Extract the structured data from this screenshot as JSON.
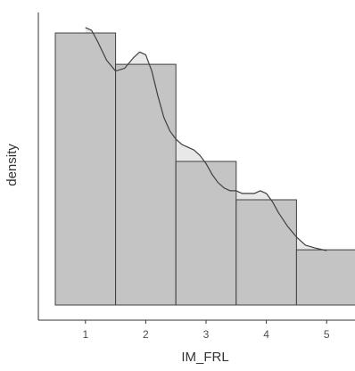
{
  "chart_data": {
    "type": "bar",
    "subtype": "histogram-with-density",
    "xlabel": "IM_FRL",
    "ylabel": "density",
    "x_ticks": [
      "1",
      "2",
      "3",
      "4",
      "5"
    ],
    "y_ticks": [],
    "xlim": [
      0.5,
      5.5
    ],
    "ylim": [
      0,
      1
    ],
    "grid": false,
    "legend": "none",
    "bins": [
      {
        "x": 1,
        "density": 1.0
      },
      {
        "x": 2,
        "density": 0.885
      },
      {
        "x": 3,
        "density": 0.528
      },
      {
        "x": 4,
        "density": 0.387
      },
      {
        "x": 5,
        "density": 0.203
      }
    ],
    "density_curve": {
      "x": [
        1.0,
        1.1,
        1.2,
        1.35,
        1.5,
        1.65,
        1.8,
        1.9,
        2.0,
        2.1,
        2.2,
        2.3,
        2.4,
        2.5,
        2.6,
        2.7,
        2.8,
        2.9,
        3.0,
        3.1,
        3.2,
        3.3,
        3.4,
        3.5,
        3.6,
        3.7,
        3.8,
        3.9,
        4.0,
        4.1,
        4.2,
        4.35,
        4.5,
        4.65,
        4.8,
        5.0
      ],
      "y": [
        1.02,
        1.01,
        0.97,
        0.9,
        0.86,
        0.87,
        0.91,
        0.93,
        0.92,
        0.86,
        0.77,
        0.69,
        0.64,
        0.61,
        0.59,
        0.58,
        0.57,
        0.55,
        0.52,
        0.48,
        0.45,
        0.43,
        0.42,
        0.42,
        0.41,
        0.41,
        0.41,
        0.42,
        0.41,
        0.38,
        0.34,
        0.29,
        0.25,
        0.22,
        0.21,
        0.2
      ]
    },
    "colors": {
      "bar_fill": "#c4c4c4",
      "bar_stroke": "#404040",
      "density_fill": "#e8e8e8",
      "density_stroke": "#404040",
      "axis": "#333333",
      "text": "#4d4d4d"
    }
  }
}
